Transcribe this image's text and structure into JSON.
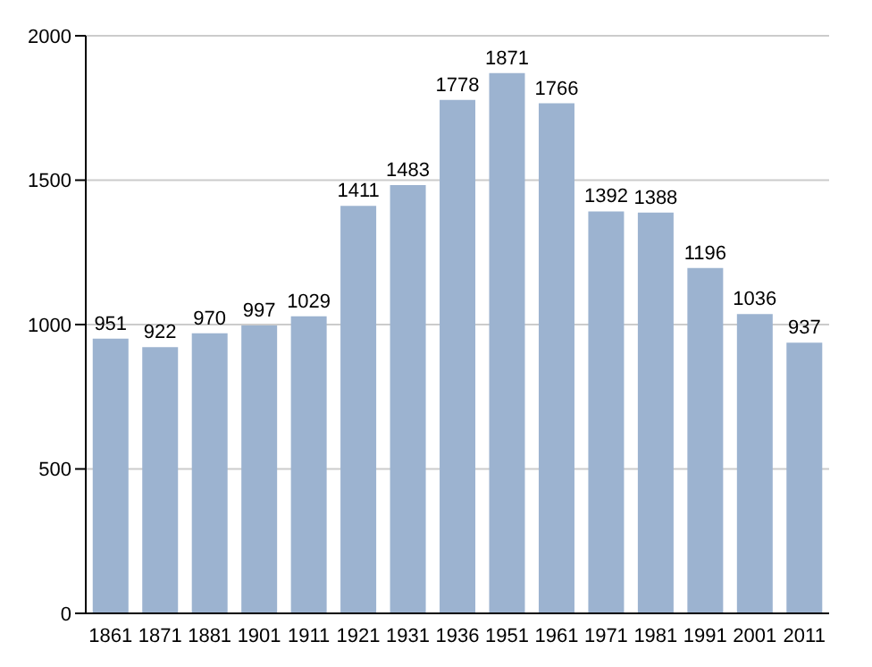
{
  "chart_data": {
    "type": "bar",
    "categories": [
      "1861",
      "1871",
      "1881",
      "1901",
      "1911",
      "1921",
      "1931",
      "1936",
      "1951",
      "1961",
      "1971",
      "1981",
      "1991",
      "2001",
      "2011"
    ],
    "values": [
      951,
      922,
      970,
      997,
      1029,
      1411,
      1483,
      1778,
      1871,
      1766,
      1392,
      1388,
      1196,
      1036,
      937
    ],
    "color": "#9cb3d0",
    "ylim": [
      0,
      2000
    ],
    "yticks": [
      0,
      500,
      1000,
      1500,
      2000
    ],
    "grid": "y",
    "data_labels": true
  }
}
